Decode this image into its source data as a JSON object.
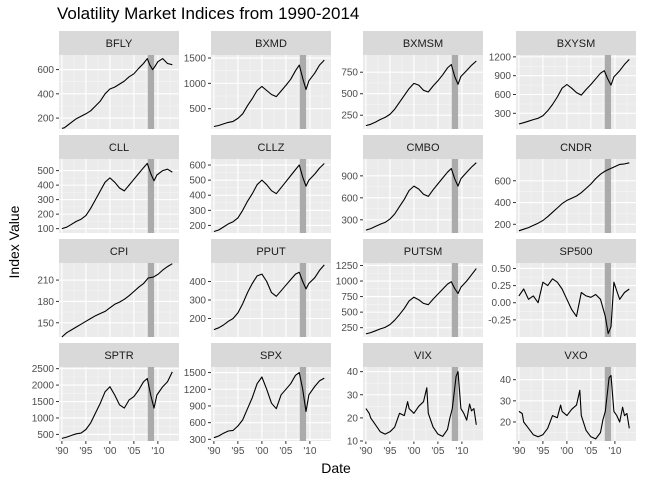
{
  "chart_data": {
    "type": "line",
    "title": "Volatility Market Indices from 1990-2014",
    "xlabel": "Date",
    "ylabel": "Index Value",
    "layout": "faceted small multiples, 4 columns x 4 rows, independent y scales",
    "grid": true,
    "xlim": [
      1989.4,
      2014.4
    ],
    "x_ticks": [
      1990,
      1995,
      2000,
      2005,
      2010
    ],
    "x_tick_labels": [
      "'90",
      "'95",
      "'00",
      "'05",
      "'10"
    ],
    "shaded_region": {
      "x_start": 2007.9,
      "x_end": 2009.2,
      "color": "#ababab"
    },
    "line_color": "#000000",
    "facets": [
      {
        "name": "BFLY",
        "ylim": [
          110,
          720
        ],
        "y_ticks": [
          200,
          400,
          600
        ],
        "y_tick_labels": [
          "200",
          "400",
          "600"
        ],
        "x": [
          1990,
          1990.5,
          1991,
          1992,
          1993,
          1994,
          1995,
          1996,
          1997,
          1998,
          1999,
          2000,
          2001,
          2002,
          2003,
          2004,
          2005,
          2006,
          2007,
          2007.8,
          2008.3,
          2008.9,
          2009.3,
          2010,
          2011,
          2012,
          2013
        ],
        "y": [
          115,
          120,
          135,
          165,
          195,
          215,
          235,
          260,
          300,
          340,
          400,
          440,
          455,
          480,
          505,
          540,
          565,
          610,
          650,
          690,
          640,
          600,
          620,
          665,
          690,
          650,
          640
        ]
      },
      {
        "name": "BXMD",
        "ylim": [
          100,
          1560
        ],
        "y_ticks": [
          500,
          1000,
          1500
        ],
        "y_tick_labels": [
          "500",
          "1000",
          "1500"
        ],
        "x": [
          1990,
          1991,
          1992,
          1993,
          1994,
          1995,
          1996,
          1997,
          1998,
          1999,
          2000,
          2001,
          2002,
          2003,
          2004,
          2005,
          2006,
          2007,
          2007.8,
          2008.5,
          2009.2,
          2009.8,
          2011,
          2012,
          2013
        ],
        "y": [
          150,
          170,
          200,
          230,
          250,
          310,
          400,
          560,
          700,
          860,
          940,
          860,
          780,
          740,
          850,
          960,
          1080,
          1250,
          1360,
          1100,
          880,
          1050,
          1200,
          1360,
          1460
        ]
      },
      {
        "name": "BXMSM",
        "ylim": [
          90,
          950
        ],
        "y_ticks": [
          250,
          500,
          750
        ],
        "y_tick_labels": [
          "250",
          "500",
          "750"
        ],
        "x": [
          1990,
          1991,
          1992,
          1993,
          1994,
          1995,
          1996,
          1997,
          1998,
          1999,
          2000,
          2001,
          2002,
          2003,
          2004,
          2005,
          2006,
          2007,
          2007.8,
          2008.5,
          2009.2,
          2009.8,
          2011,
          2012,
          2013
        ],
        "y": [
          130,
          145,
          170,
          200,
          225,
          260,
          320,
          400,
          480,
          560,
          620,
          600,
          540,
          520,
          590,
          650,
          720,
          800,
          840,
          700,
          610,
          700,
          770,
          830,
          880
        ]
      },
      {
        "name": "BXYSM",
        "ylim": [
          50,
          1230
        ],
        "y_ticks": [
          300,
          600,
          900,
          1200
        ],
        "y_tick_labels": [
          "300",
          "600",
          "900",
          "1200"
        ],
        "x": [
          1990,
          1991,
          1992,
          1993,
          1994,
          1995,
          1996,
          1997,
          1998,
          1999,
          2000,
          2001,
          2002,
          2003,
          2004,
          2005,
          2006,
          2007,
          2007.8,
          2008.5,
          2009.2,
          2009.8,
          2011,
          2012,
          2013
        ],
        "y": [
          130,
          150,
          175,
          200,
          220,
          260,
          340,
          440,
          560,
          700,
          760,
          700,
          630,
          590,
          680,
          760,
          850,
          940,
          980,
          850,
          750,
          880,
          980,
          1080,
          1160
        ]
      },
      {
        "name": "CLL",
        "ylim": [
          70,
          580
        ],
        "y_ticks": [
          100,
          200,
          300,
          400,
          500
        ],
        "y_tick_labels": [
          "100",
          "200",
          "300",
          "400",
          "500"
        ],
        "x": [
          1990,
          1991,
          1992,
          1993,
          1994,
          1995,
          1996,
          1997,
          1998,
          1999,
          2000,
          2001,
          2002,
          2003,
          2004,
          2005,
          2006,
          2007,
          2007.8,
          2008.5,
          2009.2,
          2009.8,
          2011,
          2012,
          2013
        ],
        "y": [
          100,
          110,
          130,
          150,
          165,
          190,
          240,
          300,
          360,
          420,
          450,
          420,
          380,
          360,
          400,
          440,
          480,
          520,
          550,
          480,
          430,
          470,
          500,
          510,
          490
        ]
      },
      {
        "name": "CLLZ",
        "ylim": [
          150,
          640
        ],
        "y_ticks": [
          200,
          300,
          400,
          500,
          600
        ],
        "y_tick_labels": [
          "200",
          "300",
          "400",
          "500",
          "600"
        ],
        "x": [
          1990,
          1991,
          1992,
          1993,
          1994,
          1995,
          1996,
          1997,
          1998,
          1999,
          2000,
          2001,
          2002,
          2003,
          2004,
          2005,
          2006,
          2007,
          2007.8,
          2008.5,
          2009.2,
          2009.8,
          2011,
          2012,
          2013
        ],
        "y": [
          160,
          170,
          190,
          210,
          225,
          250,
          300,
          360,
          410,
          470,
          500,
          470,
          430,
          410,
          450,
          490,
          530,
          570,
          600,
          520,
          460,
          500,
          540,
          580,
          610
        ]
      },
      {
        "name": "CMBO",
        "ylim": [
          120,
          1130
        ],
        "y_ticks": [
          300,
          600,
          900
        ],
        "y_tick_labels": [
          "300",
          "600",
          "900"
        ],
        "x": [
          1990,
          1991,
          1992,
          1993,
          1994,
          1995,
          1996,
          1997,
          1998,
          1999,
          2000,
          2001,
          2002,
          2003,
          2004,
          2005,
          2006,
          2007,
          2007.8,
          2008.5,
          2009.2,
          2009.8,
          2011,
          2012,
          2013
        ],
        "y": [
          160,
          180,
          210,
          240,
          265,
          310,
          380,
          480,
          580,
          700,
          760,
          720,
          650,
          620,
          710,
          790,
          870,
          950,
          1000,
          860,
          760,
          860,
          950,
          1020,
          1080
        ]
      },
      {
        "name": "CNDR",
        "ylim": [
          120,
          800
        ],
        "y_ticks": [
          200,
          400,
          600
        ],
        "y_tick_labels": [
          "200",
          "400",
          "600"
        ],
        "x": [
          1990,
          1991,
          1992,
          1993,
          1994,
          1995,
          1996,
          1997,
          1998,
          1999,
          2000,
          2001,
          2002,
          2003,
          2004,
          2005,
          2006,
          2007,
          2008,
          2009,
          2010,
          2011,
          2012,
          2013
        ],
        "y": [
          140,
          155,
          170,
          190,
          210,
          235,
          270,
          310,
          350,
          390,
          420,
          440,
          460,
          490,
          530,
          570,
          620,
          660,
          690,
          710,
          730,
          750,
          755,
          765
        ]
      },
      {
        "name": "CPI",
        "ylim": [
          130,
          234
        ],
        "y_ticks": [
          150,
          180,
          210
        ],
        "y_tick_labels": [
          "150",
          "180",
          "210"
        ],
        "x": [
          1990,
          1991,
          1992,
          1993,
          1994,
          1995,
          1996,
          1997,
          1998,
          1999,
          2000,
          2001,
          2002,
          2003,
          2004,
          2005,
          2006,
          2007,
          2008,
          2009,
          2010,
          2011,
          2012,
          2013
        ],
        "y": [
          130,
          136,
          140,
          144,
          148,
          152,
          156,
          160,
          163,
          166,
          171,
          176,
          179,
          183,
          188,
          194,
          200,
          205,
          213,
          214,
          218,
          224,
          229,
          233
        ]
      },
      {
        "name": "PPUT",
        "ylim": [
          100,
          500
        ],
        "y_ticks": [
          200,
          300,
          400
        ],
        "y_tick_labels": [
          "200",
          "300",
          "400"
        ],
        "x": [
          1990,
          1991,
          1992,
          1993,
          1994,
          1995,
          1996,
          1997,
          1998,
          1999,
          2000,
          2001,
          2002,
          2003,
          2004,
          2005,
          2006,
          2007,
          2007.8,
          2008.5,
          2009.2,
          2009.8,
          2011,
          2012,
          2013
        ],
        "y": [
          140,
          150,
          165,
          185,
          200,
          230,
          280,
          340,
          390,
          430,
          440,
          400,
          340,
          320,
          350,
          380,
          410,
          440,
          450,
          400,
          360,
          390,
          420,
          460,
          490
        ]
      },
      {
        "name": "PUTSM",
        "ylim": [
          100,
          1290
        ],
        "y_ticks": [
          250,
          500,
          750,
          1000,
          1250
        ],
        "y_tick_labels": [
          "250",
          "500",
          "750",
          "1000",
          "1250"
        ],
        "x": [
          1990,
          1991,
          1992,
          1993,
          1994,
          1995,
          1996,
          1997,
          1998,
          1999,
          2000,
          2001,
          2002,
          2003,
          2004,
          2005,
          2006,
          2007,
          2007.8,
          2008.5,
          2009.2,
          2009.8,
          2011,
          2012,
          2013
        ],
        "y": [
          150,
          170,
          200,
          230,
          255,
          300,
          370,
          460,
          560,
          680,
          740,
          700,
          640,
          620,
          710,
          790,
          870,
          950,
          990,
          880,
          800,
          900,
          1000,
          1100,
          1200
        ]
      },
      {
        "name": "SP500",
        "ylim": [
          -0.5,
          0.58
        ],
        "y_ticks": [
          -0.25,
          0,
          0.25,
          0.5
        ],
        "y_tick_labels": [
          "-0.25",
          "0.00",
          "0.25",
          "0.50"
        ],
        "x": [
          1990,
          1991,
          1992,
          1993,
          1994,
          1995,
          1996,
          1997,
          1998,
          1999,
          2000,
          2001,
          2002,
          2003,
          2004,
          2005,
          2006,
          2007,
          2008,
          2008.6,
          2009.2,
          2009.8,
          2010.5,
          2011,
          2012,
          2013
        ],
        "y": [
          0.1,
          0.2,
          0.05,
          0.1,
          0.0,
          0.3,
          0.25,
          0.35,
          0.3,
          0.2,
          0.05,
          -0.1,
          -0.2,
          0.15,
          0.1,
          0.08,
          0.12,
          0.05,
          -0.2,
          -0.45,
          -0.35,
          0.3,
          0.15,
          0.05,
          0.15,
          0.2
        ]
      },
      {
        "name": "SPTR",
        "ylim": [
          300,
          2550
        ],
        "y_ticks": [
          500,
          1000,
          1500,
          2000,
          2500
        ],
        "y_tick_labels": [
          "500",
          "1000",
          "1500",
          "2000",
          "2500"
        ],
        "x": [
          1990,
          1991,
          1992,
          1993,
          1994,
          1995,
          1996,
          1997,
          1998,
          1999,
          2000,
          2001,
          2002,
          2003,
          2004,
          2005,
          2006,
          2007,
          2007.8,
          2008.5,
          2009.2,
          2009.8,
          2011,
          2012,
          2013
        ],
        "y": [
          380,
          420,
          470,
          520,
          540,
          650,
          850,
          1150,
          1450,
          1800,
          1950,
          1700,
          1400,
          1300,
          1550,
          1650,
          1850,
          2100,
          2200,
          1700,
          1300,
          1700,
          1950,
          2100,
          2400
        ]
      },
      {
        "name": "SPX",
        "ylim": [
          270,
          1600
        ],
        "y_ticks": [
          300,
          600,
          900,
          1200,
          1500
        ],
        "y_tick_labels": [
          "300",
          "600",
          "900",
          "1200",
          "1500"
        ],
        "x": [
          1990,
          1991,
          1992,
          1993,
          1994,
          1995,
          1996,
          1997,
          1998,
          1999,
          2000,
          2001,
          2002,
          2003,
          2004,
          2005,
          2006,
          2007,
          2007.8,
          2008.5,
          2009.2,
          2009.8,
          2011,
          2012,
          2013
        ],
        "y": [
          330,
          360,
          410,
          450,
          460,
          540,
          650,
          850,
          1050,
          1300,
          1420,
          1200,
          950,
          850,
          1100,
          1200,
          1300,
          1450,
          1500,
          1200,
          800,
          1100,
          1250,
          1350,
          1400
        ]
      },
      {
        "name": "VIX",
        "ylim": [
          10,
          42
        ],
        "y_ticks": [
          10,
          20,
          30,
          40
        ],
        "y_tick_labels": [
          "10",
          "20",
          "30",
          "40"
        ],
        "x": [
          1990,
          1990.7,
          1991,
          1992,
          1993,
          1994,
          1995,
          1996,
          1997,
          1998,
          1998.7,
          1999,
          2000,
          2001,
          2002,
          2002.7,
          2003,
          2004,
          2005,
          2006,
          2007,
          2007.5,
          2008,
          2008.8,
          2009.2,
          2009.8,
          2010.4,
          2011,
          2011.6,
          2012,
          2012.5,
          2013
        ],
        "y": [
          24,
          22,
          20,
          17,
          14,
          13,
          14,
          16,
          22,
          21,
          27,
          24,
          22,
          25,
          27,
          33,
          22,
          16,
          13,
          12,
          15,
          20,
          24,
          38,
          40,
          24,
          22,
          19,
          26,
          23,
          24,
          17
        ]
      },
      {
        "name": "VXO",
        "ylim": [
          11,
          46
        ],
        "y_ticks": [
          10,
          20,
          30,
          40
        ],
        "y_tick_labels": [
          "10",
          "20",
          "30",
          "40"
        ],
        "x": [
          1990,
          1990.7,
          1991,
          1992,
          1993,
          1994,
          1995,
          1996,
          1997,
          1998,
          1998.7,
          1999,
          2000,
          2001,
          2002,
          2002.7,
          2003,
          2004,
          2005,
          2006,
          2007,
          2007.5,
          2008,
          2008.8,
          2009.2,
          2009.8,
          2010.4,
          2011,
          2011.6,
          2012,
          2012.5,
          2013
        ],
        "y": [
          25,
          24,
          20,
          17,
          14,
          13,
          14,
          17,
          23,
          22,
          28,
          25,
          23,
          26,
          28,
          35,
          23,
          16,
          13,
          12,
          15,
          21,
          25,
          41,
          42,
          25,
          23,
          20,
          27,
          23,
          24,
          17
        ]
      }
    ]
  }
}
